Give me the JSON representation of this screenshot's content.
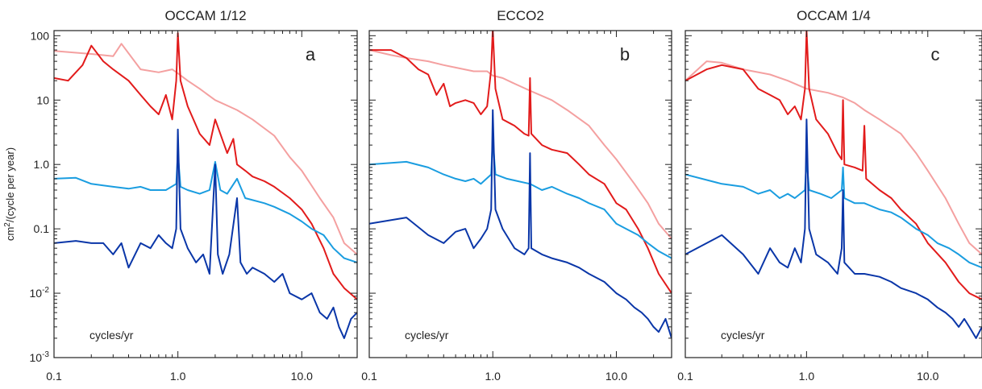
{
  "chart_data": [
    {
      "type": "line",
      "title": "OCCAM 1/12",
      "panel_label": "a",
      "annotation": "cycles/yr",
      "ylabel": "cm²/(cycle per year)",
      "x_scale": "log",
      "y_scale": "log",
      "xlim": [
        0.1,
        28
      ],
      "ylim": [
        0.001,
        120
      ],
      "x_tick_labels": [
        "0.1",
        "1.0",
        "10.0"
      ],
      "y_tick_labels": [
        {
          "value": 100,
          "base": "100",
          "sup": ""
        },
        {
          "value": 10,
          "base": "10",
          "sup": ""
        },
        {
          "value": 1,
          "base": "1.0",
          "sup": ""
        },
        {
          "value": 0.1,
          "base": "0.1",
          "sup": ""
        },
        {
          "value": 0.01,
          "base": "10",
          "sup": "-2"
        },
        {
          "value": 0.001,
          "base": "10",
          "sup": "-3"
        }
      ],
      "series": [
        {
          "color": "#f4a0a0",
          "x": [
            0.1,
            0.2,
            0.3,
            0.35,
            0.5,
            0.7,
            0.9,
            1.0,
            1.2,
            1.5,
            2,
            3,
            4,
            6,
            8,
            10,
            14,
            18,
            22,
            28
          ],
          "y": [
            58,
            52,
            48,
            75,
            30,
            27,
            30,
            26,
            20,
            15,
            10,
            7,
            5,
            2.8,
            1.3,
            0.8,
            0.3,
            0.15,
            0.06,
            0.04
          ]
        },
        {
          "color": "#e21b1b",
          "x": [
            0.1,
            0.13,
            0.17,
            0.2,
            0.25,
            0.3,
            0.4,
            0.5,
            0.6,
            0.7,
            0.8,
            0.9,
            0.97,
            1.0,
            1.05,
            1.2,
            1.5,
            1.8,
            2.0,
            2.5,
            2.8,
            3.0,
            3.5,
            4,
            5,
            6,
            8,
            10,
            12,
            15,
            18,
            22,
            28
          ],
          "y": [
            22,
            20,
            35,
            70,
            40,
            30,
            20,
            12,
            8,
            6,
            12,
            5,
            20,
            110,
            20,
            8,
            3,
            2,
            5,
            1.5,
            2.5,
            1,
            0.8,
            0.65,
            0.55,
            0.45,
            0.3,
            0.2,
            0.12,
            0.05,
            0.02,
            0.012,
            0.008
          ]
        },
        {
          "color": "#1a9de0",
          "x": [
            0.1,
            0.15,
            0.2,
            0.3,
            0.4,
            0.5,
            0.6,
            0.8,
            0.97,
            1.0,
            1.05,
            1.2,
            1.5,
            1.8,
            2.0,
            2.2,
            2.5,
            3.0,
            3.5,
            4,
            5,
            6,
            8,
            10,
            12,
            15,
            18,
            22,
            28
          ],
          "y": [
            0.6,
            0.62,
            0.5,
            0.45,
            0.42,
            0.45,
            0.4,
            0.4,
            0.5,
            1.5,
            0.45,
            0.4,
            0.35,
            0.4,
            1.1,
            0.4,
            0.35,
            0.6,
            0.3,
            0.28,
            0.25,
            0.22,
            0.17,
            0.13,
            0.1,
            0.08,
            0.05,
            0.035,
            0.03
          ]
        },
        {
          "color": "#0a36a8",
          "x": [
            0.1,
            0.15,
            0.2,
            0.25,
            0.3,
            0.35,
            0.4,
            0.5,
            0.6,
            0.7,
            0.8,
            0.9,
            0.97,
            1.0,
            1.05,
            1.2,
            1.4,
            1.6,
            1.8,
            2.0,
            2.1,
            2.3,
            2.6,
            3.0,
            3.2,
            3.6,
            4,
            5,
            6,
            7,
            8,
            10,
            12,
            14,
            16,
            18,
            20,
            22,
            25,
            28
          ],
          "y": [
            0.06,
            0.065,
            0.06,
            0.06,
            0.04,
            0.06,
            0.025,
            0.06,
            0.05,
            0.08,
            0.06,
            0.05,
            0.1,
            3.5,
            0.1,
            0.05,
            0.03,
            0.04,
            0.02,
            1.0,
            0.04,
            0.02,
            0.04,
            0.3,
            0.03,
            0.02,
            0.025,
            0.02,
            0.015,
            0.02,
            0.01,
            0.008,
            0.01,
            0.005,
            0.004,
            0.006,
            0.003,
            0.002,
            0.004,
            0.005
          ]
        }
      ]
    },
    {
      "type": "line",
      "title": "ECCO2",
      "panel_label": "b",
      "annotation": "cycles/yr",
      "x_scale": "log",
      "y_scale": "log",
      "xlim": [
        0.1,
        28
      ],
      "ylim": [
        0.001,
        120
      ],
      "x_tick_labels": [
        "0.1",
        "1.0",
        "10.0"
      ],
      "series": [
        {
          "color": "#f4a0a0",
          "x": [
            0.1,
            0.15,
            0.2,
            0.3,
            0.4,
            0.5,
            0.7,
            0.9,
            1.0,
            1.2,
            1.5,
            2,
            3,
            4,
            6,
            8,
            10,
            14,
            18,
            22,
            28
          ],
          "y": [
            60,
            50,
            45,
            40,
            35,
            32,
            28,
            28,
            24,
            22,
            18,
            14,
            10,
            7,
            4,
            2,
            1.2,
            0.5,
            0.25,
            0.12,
            0.07
          ]
        },
        {
          "color": "#e21b1b",
          "x": [
            0.1,
            0.15,
            0.2,
            0.25,
            0.3,
            0.35,
            0.4,
            0.45,
            0.5,
            0.6,
            0.7,
            0.8,
            0.9,
            0.97,
            1.0,
            1.05,
            1.2,
            1.5,
            1.8,
            1.95,
            2.0,
            2.05,
            2.5,
            3.0,
            4,
            5,
            6,
            8,
            10,
            12,
            15,
            18,
            22,
            28
          ],
          "y": [
            60,
            60,
            45,
            30,
            25,
            12,
            18,
            8,
            9,
            10,
            9,
            6,
            8,
            30,
            130,
            15,
            5,
            4,
            3,
            2.8,
            22,
            3,
            2,
            1.7,
            1.5,
            1.0,
            0.7,
            0.5,
            0.25,
            0.2,
            0.1,
            0.05,
            0.02,
            0.01
          ]
        },
        {
          "color": "#1a9de0",
          "x": [
            0.1,
            0.2,
            0.3,
            0.4,
            0.5,
            0.6,
            0.7,
            0.8,
            0.97,
            1.0,
            1.05,
            1.3,
            1.6,
            2.0,
            2.5,
            3.0,
            4,
            5,
            6,
            8,
            10,
            12,
            15,
            18,
            22,
            28
          ],
          "y": [
            1.0,
            1.1,
            0.9,
            0.7,
            0.6,
            0.55,
            0.6,
            0.5,
            0.7,
            2.5,
            0.7,
            0.6,
            0.55,
            0.5,
            0.4,
            0.45,
            0.35,
            0.3,
            0.25,
            0.2,
            0.12,
            0.1,
            0.08,
            0.06,
            0.045,
            0.035
          ]
        },
        {
          "color": "#0a36a8",
          "x": [
            0.1,
            0.2,
            0.3,
            0.4,
            0.5,
            0.6,
            0.7,
            0.8,
            0.9,
            0.97,
            1.0,
            1.05,
            1.2,
            1.5,
            1.8,
            1.95,
            2.0,
            2.05,
            2.5,
            3.0,
            4,
            5,
            6,
            8,
            10,
            12,
            14,
            16,
            18,
            20,
            22,
            25,
            28
          ],
          "y": [
            0.12,
            0.15,
            0.08,
            0.06,
            0.09,
            0.1,
            0.05,
            0.07,
            0.1,
            0.2,
            7,
            0.2,
            0.1,
            0.05,
            0.04,
            0.05,
            1.5,
            0.05,
            0.04,
            0.035,
            0.03,
            0.025,
            0.02,
            0.015,
            0.01,
            0.008,
            0.006,
            0.005,
            0.004,
            0.003,
            0.0025,
            0.004,
            0.002
          ]
        }
      ]
    },
    {
      "type": "line",
      "title": "OCCAM 1/4",
      "panel_label": "c",
      "annotation": "cycles/yr",
      "x_scale": "log",
      "y_scale": "log",
      "xlim": [
        0.1,
        28
      ],
      "ylim": [
        0.001,
        120
      ],
      "x_tick_labels": [
        "0.1",
        "1.0",
        "10.0"
      ],
      "series": [
        {
          "color": "#f4a0a0",
          "x": [
            0.1,
            0.15,
            0.2,
            0.3,
            0.5,
            0.7,
            1.0,
            1.5,
            2,
            2.5,
            3,
            4,
            6,
            8,
            10,
            14,
            18,
            22,
            28
          ],
          "y": [
            20,
            40,
            38,
            30,
            25,
            20,
            15,
            13,
            11,
            9,
            7,
            5,
            3,
            1.5,
            0.8,
            0.3,
            0.12,
            0.06,
            0.04
          ]
        },
        {
          "color": "#e21b1b",
          "x": [
            0.1,
            0.15,
            0.2,
            0.3,
            0.4,
            0.5,
            0.6,
            0.7,
            0.8,
            0.9,
            0.97,
            1.0,
            1.05,
            1.2,
            1.5,
            1.8,
            1.95,
            2.0,
            2.05,
            2.5,
            2.9,
            3.0,
            3.1,
            4,
            5,
            6,
            8,
            10,
            14,
            18,
            22,
            28
          ],
          "y": [
            20,
            30,
            35,
            30,
            15,
            12,
            10,
            6,
            8,
            5,
            15,
            120,
            15,
            5,
            3,
            1.5,
            1.2,
            10,
            1.0,
            0.9,
            0.8,
            4,
            0.6,
            0.4,
            0.3,
            0.2,
            0.12,
            0.06,
            0.03,
            0.015,
            0.01,
            0.008
          ]
        },
        {
          "color": "#1a9de0",
          "x": [
            0.1,
            0.2,
            0.3,
            0.4,
            0.5,
            0.6,
            0.7,
            0.8,
            0.97,
            1.0,
            1.05,
            1.3,
            1.6,
            1.95,
            2.0,
            2.05,
            2.5,
            3.0,
            4,
            5,
            6,
            8,
            10,
            12,
            15,
            18,
            22,
            28
          ],
          "y": [
            0.7,
            0.5,
            0.45,
            0.35,
            0.4,
            0.3,
            0.35,
            0.3,
            0.4,
            1.2,
            0.4,
            0.35,
            0.3,
            0.4,
            0.9,
            0.3,
            0.25,
            0.25,
            0.2,
            0.18,
            0.15,
            0.1,
            0.08,
            0.06,
            0.05,
            0.04,
            0.03,
            0.025
          ]
        },
        {
          "color": "#0a36a8",
          "x": [
            0.1,
            0.2,
            0.3,
            0.4,
            0.5,
            0.6,
            0.7,
            0.8,
            0.9,
            0.97,
            1.0,
            1.05,
            1.2,
            1.5,
            1.8,
            1.95,
            2.0,
            2.05,
            2.5,
            3.0,
            4,
            5,
            6,
            8,
            10,
            12,
            14,
            16,
            18,
            20,
            22,
            25,
            28
          ],
          "y": [
            0.04,
            0.08,
            0.04,
            0.02,
            0.05,
            0.03,
            0.025,
            0.05,
            0.03,
            0.1,
            5,
            0.1,
            0.04,
            0.03,
            0.02,
            0.05,
            0.4,
            0.03,
            0.02,
            0.02,
            0.018,
            0.015,
            0.012,
            0.01,
            0.008,
            0.006,
            0.005,
            0.004,
            0.003,
            0.004,
            0.003,
            0.002,
            0.003
          ]
        }
      ]
    }
  ]
}
